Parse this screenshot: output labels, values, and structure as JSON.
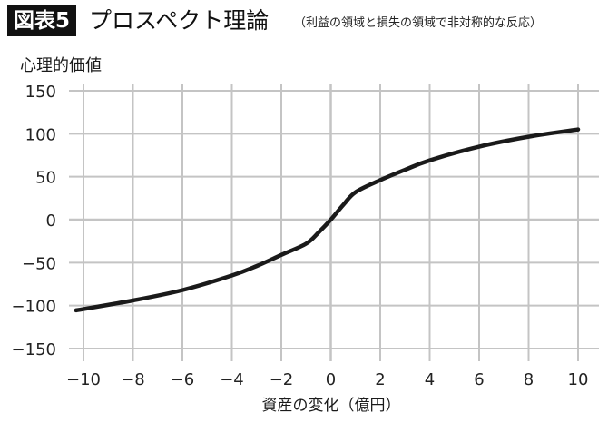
{
  "chart_data": {
    "type": "line",
    "badge": "図表5",
    "title": "プロスペクト理論",
    "subtitle": "（利益の領域と損失の領域で非対称的な反応）",
    "ylabel": "心理的価値",
    "xlabel": "資産の変化（億円）",
    "xlim": [
      -10,
      10
    ],
    "ylim": [
      -150,
      150
    ],
    "xticks": [
      -10,
      -8,
      -6,
      -4,
      -2,
      0,
      2,
      4,
      6,
      8,
      10
    ],
    "yticks": [
      150,
      100,
      50,
      0,
      -50,
      -100,
      -150
    ],
    "xtick_labels": [
      "−10",
      "−8",
      "−6",
      "−4",
      "−2",
      "0",
      "2",
      "4",
      "6",
      "8",
      "10"
    ],
    "ytick_labels": [
      "150",
      "100",
      "50",
      "0",
      "−50",
      "−100",
      "−150"
    ],
    "grid": true,
    "series": [
      {
        "color": "#1a1a1a",
        "x": [
          -10.3,
          -8,
          -6,
          -4,
          -3,
          -2,
          -1,
          -0.5,
          0,
          0.5,
          1,
          2,
          3,
          4,
          6,
          8,
          10
        ],
        "y": [
          -105.5,
          -94,
          -82,
          -65,
          -54,
          -41,
          -28,
          -15,
          0,
          17,
          32,
          46,
          58,
          69,
          85,
          96.5,
          105
        ]
      }
    ]
  }
}
